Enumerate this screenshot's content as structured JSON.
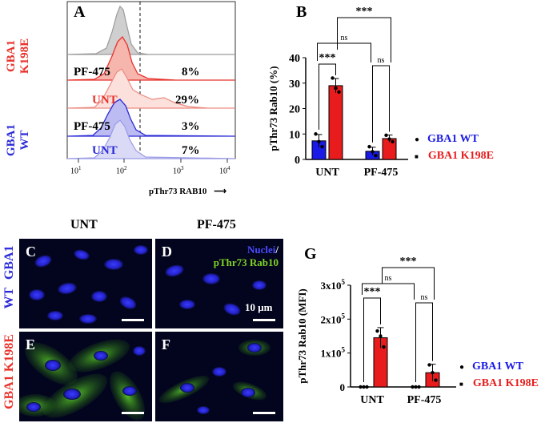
{
  "panelA": {
    "letter": "A",
    "x_label": "pThr73  RAB10",
    "x_arrow": "⟶",
    "x_ticks": [
      {
        "base": "10",
        "exp": "1"
      },
      {
        "base": "10",
        "exp": "2"
      },
      {
        "base": "10",
        "exp": "3"
      },
      {
        "base": "10",
        "exp": "4"
      }
    ],
    "group_k198e": {
      "line1": "GBA1",
      "line2": "K198E"
    },
    "group_wt": {
      "line1": "GBA1",
      "line2": "WT"
    },
    "rows": [
      {
        "label": "PF-475",
        "percent": "8%"
      },
      {
        "label": "UNT",
        "percent": "29%"
      },
      {
        "label": "PF-475",
        "percent": "3%"
      },
      {
        "label": "UNT",
        "percent": "7%"
      }
    ],
    "colors": {
      "grey": "#a8a8a8",
      "red": "#e8322c",
      "blue": "#2a2ad8"
    }
  },
  "panelB": {
    "letter": "B",
    "ns_label": "ns",
    "sig_label": "***"
  },
  "legend": {
    "wt_label": "GBA1 WT",
    "k198e_label": "GBA1 K198E",
    "wt_color": "#1a1ae6",
    "k198e_color": "#e81c1c"
  },
  "panelG": {
    "letter": "G",
    "ns_label": "ns",
    "sig_label": "***"
  },
  "images": {
    "col_unt": "UNT",
    "col_pf": "PF-475",
    "row_wt": {
      "line1": "WT",
      "line2": "GBA1"
    },
    "row_k198e": "GBA1 K198E",
    "panel_c": "C",
    "panel_d": "D",
    "panel_e": "E",
    "panel_f": "F",
    "stain_nuclei": "Nuclei",
    "stain_sep": "/",
    "stain_rab10": "pThr73 Rab10",
    "scale_label": "10 μm"
  },
  "chart_data": [
    {
      "type": "bar",
      "panel": "B",
      "categories": [
        "UNT",
        "PF-475"
      ],
      "series": [
        {
          "name": "GBA1 WT",
          "values": [
            7.3,
            3.2
          ],
          "error": [
            2.5,
            1.6
          ],
          "points": [
            [
              10,
              7,
              5
            ],
            [
              5,
              3,
              1.5
            ]
          ]
        },
        {
          "name": "GBA1 K198E",
          "values": [
            29,
            8.2
          ],
          "error": [
            2.8,
            1.4
          ],
          "points": [
            [
              32,
              28,
              26.5
            ],
            [
              9.5,
              8,
              7
            ]
          ]
        }
      ],
      "ylabel": "pThr73 Rab10  (%)",
      "ylim": [
        0,
        40
      ],
      "yticks": [
        "0",
        "10",
        "20",
        "30",
        "40"
      ]
    },
    {
      "type": "bar",
      "panel": "G",
      "categories": [
        "UNT",
        "PF-475"
      ],
      "series": [
        {
          "name": "GBA1 WT",
          "values": [
            0,
            0
          ],
          "error": [
            0,
            0
          ],
          "points": [
            [
              0,
              0,
              0
            ],
            [
              0,
              0,
              0
            ]
          ]
        },
        {
          "name": "GBA1 K198E",
          "values": [
            145000,
            42000
          ],
          "error": [
            30000,
            25000
          ],
          "points": [
            [
              165000,
              150000,
              118000
            ],
            [
              65000,
              42000,
              20000
            ]
          ]
        }
      ],
      "ylabel": "pThr73 Rab10  (MFI)",
      "ylim": [
        0,
        300000
      ],
      "yticks": [
        {
          "base": "0",
          "exp": ""
        },
        {
          "base": "1x10",
          "exp": "5"
        },
        {
          "base": "2x10",
          "exp": "5"
        },
        {
          "base": "3x10",
          "exp": "5"
        }
      ]
    }
  ]
}
